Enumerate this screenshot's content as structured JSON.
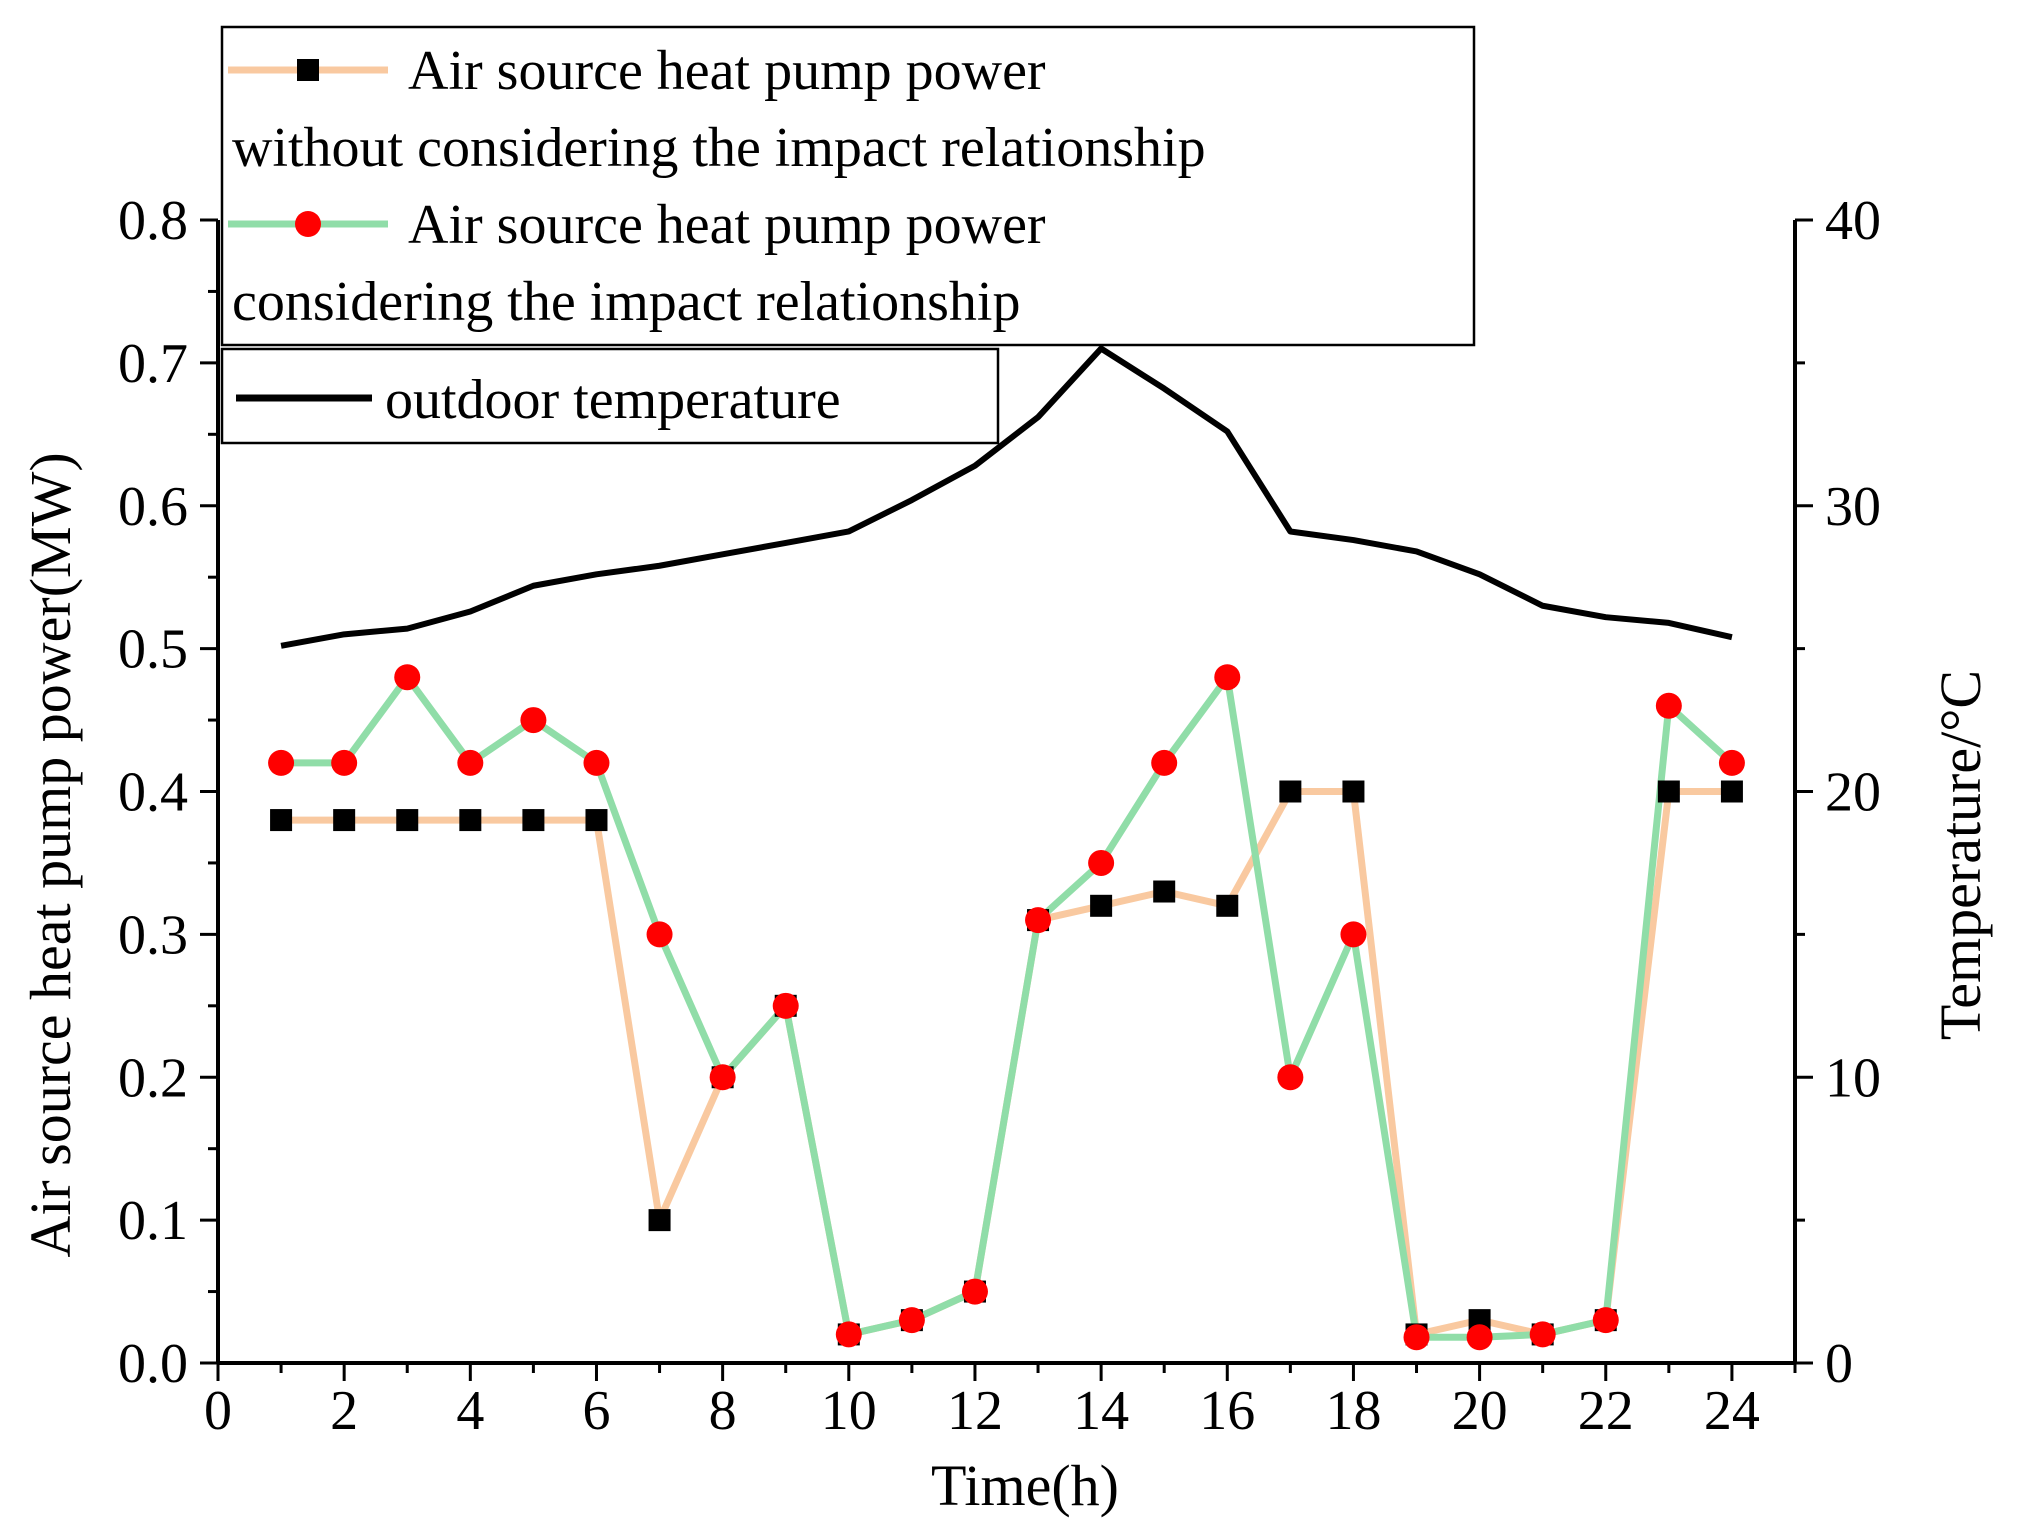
{
  "chart_data": {
    "type": "line",
    "xlabel": "Time(h)",
    "ylabel": "Air source heat pump power(MW)",
    "y2label": "Temperature/°C",
    "xlim": [
      0,
      25
    ],
    "ylim": [
      0,
      0.8
    ],
    "y2lim": [
      0,
      40
    ],
    "xticks": [
      "0",
      "2",
      "4",
      "6",
      "8",
      "10",
      "12",
      "14",
      "16",
      "18",
      "20",
      "22",
      "24"
    ],
    "yticks": [
      "0.0",
      "0.1",
      "0.2",
      "0.3",
      "0.4",
      "0.5",
      "0.6",
      "0.7",
      "0.8"
    ],
    "y2ticks": [
      "0",
      "10",
      "20",
      "30",
      "40"
    ],
    "x": [
      1,
      2,
      3,
      4,
      5,
      6,
      7,
      8,
      9,
      10,
      11,
      12,
      13,
      14,
      15,
      16,
      17,
      18,
      19,
      20,
      21,
      22,
      23,
      24
    ],
    "series": [
      {
        "name": "Air source heat pump power without considering the impact relationship",
        "legend_lines": [
          "Air source heat pump power",
          "without considering the impact relationship"
        ],
        "axis": "left",
        "line_color": "#F9C9A0",
        "marker": "square",
        "marker_color": "#000000",
        "values": [
          0.38,
          0.38,
          0.38,
          0.38,
          0.38,
          0.38,
          0.1,
          0.2,
          0.25,
          0.02,
          0.03,
          0.05,
          0.31,
          0.32,
          0.33,
          0.32,
          0.4,
          0.4,
          0.02,
          0.03,
          0.02,
          0.03,
          0.4,
          0.4
        ]
      },
      {
        "name": "Air source heat pump power considering the impact relationship",
        "legend_lines": [
          "Air source heat pump power",
          "considering the impact relationship"
        ],
        "axis": "left",
        "line_color": "#90DDA8",
        "marker": "circle",
        "marker_color": "#FF0000",
        "values": [
          0.42,
          0.42,
          0.48,
          0.42,
          0.45,
          0.42,
          0.3,
          0.2,
          0.25,
          0.02,
          0.03,
          0.05,
          0.31,
          0.35,
          0.42,
          0.48,
          0.2,
          0.3,
          0.018,
          0.018,
          0.02,
          0.03,
          0.46,
          0.42
        ]
      },
      {
        "name": "outdoor temperature",
        "legend_lines": [
          "outdoor temperature"
        ],
        "axis": "right",
        "line_color": "#000000",
        "marker": "none",
        "values": [
          25.1,
          25.5,
          25.7,
          26.3,
          27.2,
          27.6,
          27.9,
          28.3,
          28.7,
          29.1,
          30.2,
          31.4,
          33.1,
          35.5,
          34.1,
          32.6,
          29.1,
          28.8,
          28.4,
          27.6,
          26.5,
          26.1,
          25.9,
          25.4
        ]
      }
    ],
    "legend_position": "top-left",
    "grid": false
  }
}
